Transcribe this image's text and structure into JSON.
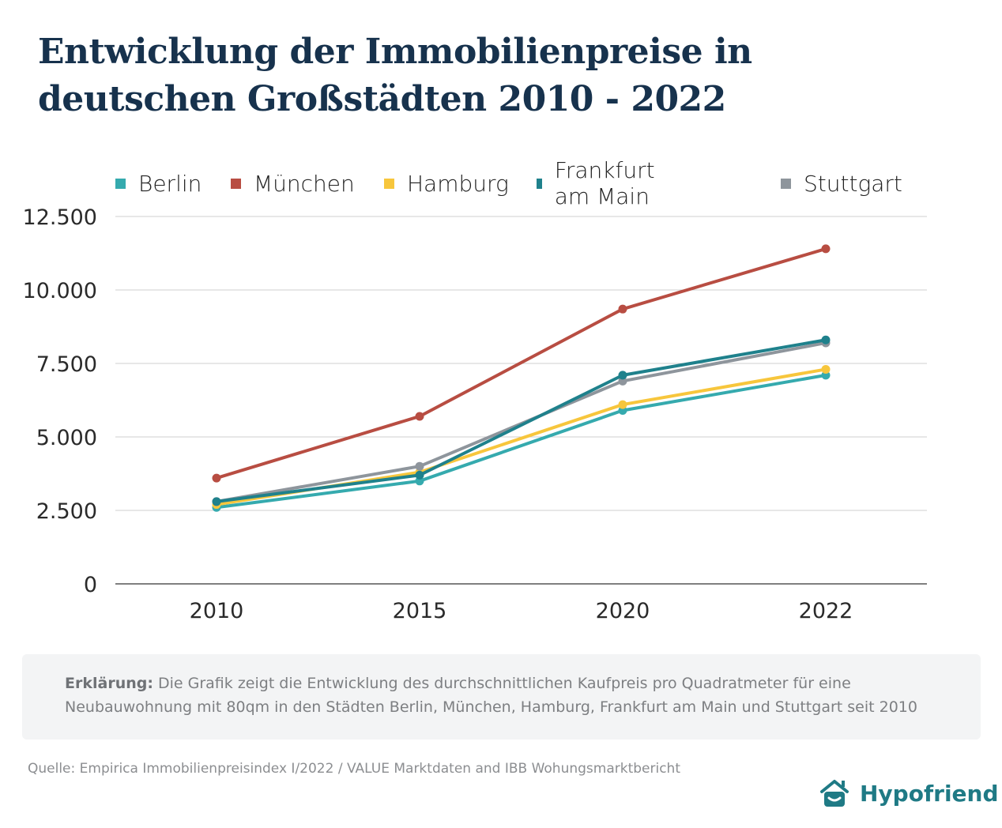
{
  "header": {
    "title_line1": "Entwicklung der Immobilienpreise in",
    "title_line2": "deutschen Großstädten 2010 - 2022"
  },
  "chart_data": {
    "type": "line",
    "title": "Entwicklung der Immobilienpreise in deutschen Großstädten 2010 - 2022",
    "xlabel": "",
    "ylabel": "",
    "categories": [
      "2010",
      "2015",
      "2020",
      "2022"
    ],
    "ylim": [
      0,
      12500
    ],
    "yticks": [
      0,
      2500,
      5000,
      7500,
      10000,
      12500
    ],
    "ytick_labels": [
      "0",
      "2.500",
      "5.000",
      "7.500",
      "10.000",
      "12.500"
    ],
    "grid": true,
    "legend_position": "top",
    "series": [
      {
        "name": "Berlin",
        "color": "#35aaae",
        "values": [
          2600,
          3500,
          5900,
          7100
        ]
      },
      {
        "name": "Hamburg",
        "color": "#f7c63c",
        "values": [
          2700,
          3800,
          6100,
          7300
        ]
      },
      {
        "name": "Stuttgart",
        "color": "#8e959c",
        "values": [
          2800,
          4000,
          6900,
          8200
        ]
      },
      {
        "name": "Frankfurt am Main",
        "color": "#1f818c",
        "values": [
          2800,
          3700,
          7100,
          8300
        ]
      },
      {
        "name": "München",
        "color": "#b84d42",
        "values": [
          3600,
          5700,
          9350,
          11400
        ]
      }
    ],
    "legend_order": [
      "Berlin",
      "München",
      "Hamburg",
      "Frankfurt am Main",
      "Stuttgart"
    ]
  },
  "legend": [
    {
      "label": "Berlin",
      "color": "#35aaae"
    },
    {
      "label": "München",
      "color": "#b84d42"
    },
    {
      "label": "Hamburg",
      "color": "#f7c63c"
    },
    {
      "label": "Frankfurt am Main",
      "color": "#1f818c"
    },
    {
      "label": "Stuttgart",
      "color": "#8e959c"
    }
  ],
  "note": {
    "label": "Erklärung:",
    "text": " Die Grafik zeigt die Entwicklung des durchschnittlichen Kaufpreis pro Quadratmeter für eine Neubauwohnung mit 80qm in den Städten Berlin, München, Hamburg, Frankfurt am Main und Stuttgart seit 2010"
  },
  "source": "Quelle: Empirica Immobilienpreisindex I/2022  / VALUE Marktdaten and IBB Wohungsmarktbericht",
  "brand": {
    "name": "Hypofriend",
    "icon": "house-smile-icon",
    "color": "#1f7a85"
  }
}
